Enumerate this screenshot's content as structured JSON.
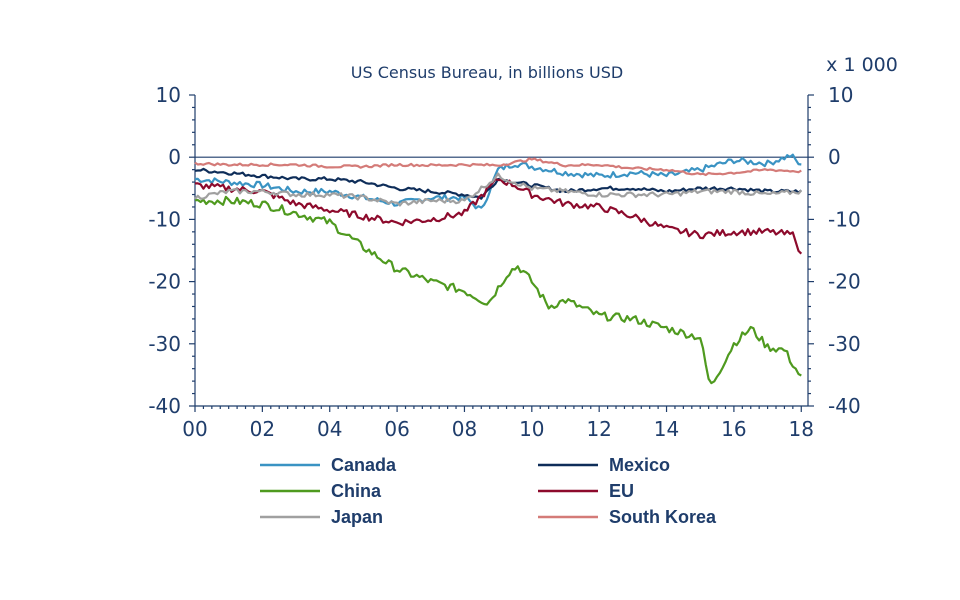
{
  "chart_data": {
    "type": "line",
    "title": "US Census Bureau, in billions USD",
    "unit_label": "x 1 000",
    "xlabel": "",
    "ylabel": "",
    "xlim": [
      2000,
      2018.2
    ],
    "ylim": [
      -40,
      10
    ],
    "x_ticks": [
      {
        "value": 2000,
        "label": "00"
      },
      {
        "value": 2002,
        "label": "02"
      },
      {
        "value": 2004,
        "label": "04"
      },
      {
        "value": 2006,
        "label": "06"
      },
      {
        "value": 2008,
        "label": "08"
      },
      {
        "value": 2010,
        "label": "10"
      },
      {
        "value": 2012,
        "label": "12"
      },
      {
        "value": 2014,
        "label": "14"
      },
      {
        "value": 2016,
        "label": "16"
      },
      {
        "value": 2018,
        "label": "18"
      }
    ],
    "y_ticks": [
      {
        "value": 10,
        "label": "10"
      },
      {
        "value": 0,
        "label": "0"
      },
      {
        "value": -10,
        "label": "-10"
      },
      {
        "value": -20,
        "label": "-20"
      },
      {
        "value": -30,
        "label": "-30"
      },
      {
        "value": -40,
        "label": "-40"
      }
    ],
    "grid": false,
    "zero_line": true,
    "legend_position": "bottom",
    "series": [
      {
        "name": "Canada",
        "color": "#3a93c3",
        "x": [
          2000,
          2001,
          2002,
          2003,
          2004,
          2005,
          2006,
          2007,
          2008,
          2008.5,
          2009,
          2009.5,
          2010,
          2011,
          2012,
          2013,
          2014,
          2015,
          2016,
          2017,
          2017.7,
          2018
        ],
        "y": [
          -3.5,
          -4,
          -4.5,
          -5.5,
          -5.5,
          -6.5,
          -7.5,
          -6.5,
          -6.5,
          -8.5,
          -2,
          -1,
          -1.5,
          -2.5,
          -3,
          -2.5,
          -3,
          -2,
          -0.5,
          -1,
          0.3,
          -1.5
        ]
      },
      {
        "name": "Mexico",
        "color": "#0e2d59",
        "x": [
          2000,
          2001,
          2002,
          2003,
          2004,
          2005,
          2006,
          2007,
          2008,
          2008.5,
          2009,
          2009.5,
          2010,
          2011,
          2012,
          2013,
          2014,
          2015,
          2016,
          2017,
          2018
        ],
        "y": [
          -2,
          -2.5,
          -3,
          -3.5,
          -3.5,
          -4,
          -5,
          -5.5,
          -6,
          -6.5,
          -3.5,
          -4,
          -4.5,
          -5.5,
          -5,
          -5,
          -5.5,
          -5,
          -5,
          -5.5,
          -5.5
        ]
      },
      {
        "name": "China",
        "color": "#4f9a1f",
        "x": [
          2000,
          2001,
          2002,
          2003,
          2004,
          2005,
          2006,
          2007,
          2008,
          2008.7,
          2009.3,
          2009.6,
          2010,
          2010.5,
          2011,
          2012,
          2013,
          2014,
          2015,
          2015.3,
          2016,
          2016.5,
          2017,
          2017.5,
          2018
        ],
        "y": [
          -7,
          -7,
          -7.5,
          -9,
          -10.5,
          -14.5,
          -18,
          -20,
          -21.5,
          -23.5,
          -18.5,
          -17.5,
          -20,
          -24,
          -23,
          -25.5,
          -26,
          -27.5,
          -29,
          -37,
          -30,
          -27.5,
          -30.5,
          -31,
          -35.5
        ]
      },
      {
        "name": "EU",
        "color": "#8d0a2c",
        "x": [
          2000,
          2001,
          2002,
          2003,
          2004,
          2005,
          2006,
          2007,
          2008,
          2009,
          2009.5,
          2010,
          2011,
          2012,
          2013,
          2014,
          2015,
          2016,
          2017,
          2017.8,
          2018
        ],
        "y": [
          -4.5,
          -5,
          -5.5,
          -7.5,
          -8.5,
          -9.5,
          -10.5,
          -10,
          -9,
          -3.5,
          -4.5,
          -6,
          -7.5,
          -8,
          -9.5,
          -11.5,
          -12.5,
          -12,
          -12,
          -12.5,
          -16
        ]
      },
      {
        "name": "Japan",
        "color": "#a0a0a0",
        "x": [
          2000,
          2001,
          2002,
          2003,
          2004,
          2005,
          2006,
          2007,
          2008,
          2009,
          2009.5,
          2010,
          2011,
          2012,
          2013,
          2014,
          2015,
          2016,
          2017,
          2018
        ],
        "y": [
          -6.5,
          -5.5,
          -5.5,
          -6,
          -6,
          -6.5,
          -7.5,
          -7,
          -7,
          -3,
          -4,
          -5,
          -5.5,
          -6,
          -6,
          -6,
          -5.5,
          -5.5,
          -6,
          -5.5
        ]
      },
      {
        "name": "South Korea",
        "color": "#d47b78",
        "x": [
          2000,
          2001,
          2002,
          2003,
          2004,
          2005,
          2006,
          2007,
          2008,
          2009,
          2010,
          2011,
          2012,
          2013,
          2014,
          2015,
          2016,
          2017,
          2018
        ],
        "y": [
          -1,
          -1.2,
          -1.2,
          -1.2,
          -1.5,
          -1.5,
          -1.2,
          -1.3,
          -1.2,
          -1.3,
          -0.3,
          -1.3,
          -1.2,
          -1.8,
          -2,
          -2.8,
          -2.5,
          -2,
          -2.3
        ]
      }
    ]
  }
}
